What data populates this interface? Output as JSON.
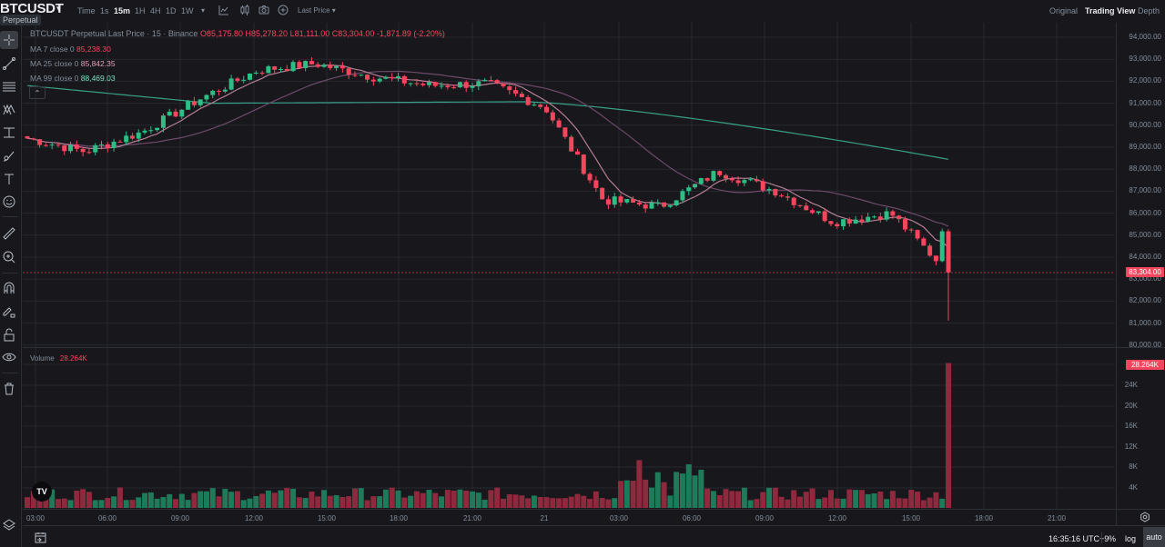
{
  "header": {
    "symbol": "BTCUSDT",
    "symbol_caret": "▾",
    "badge": "Perpetual",
    "time_label": "Time",
    "intervals": [
      "1s",
      "15m",
      "1H",
      "4H",
      "1D",
      "1W"
    ],
    "active_interval": "15m",
    "more_caret": "▾",
    "price_type": "Last Price ▾",
    "views": [
      "Original",
      "Trading View",
      "Depth"
    ],
    "active_view": "Trading View"
  },
  "legend": {
    "title": "BTCUSDT Perpetual Last Price · 15 · Binance",
    "open": "O85,175.80",
    "high": "H85,278.20",
    "low": "L81,111.00",
    "close": "C83,304.00",
    "change": "-1,871.89 (-2.20%)",
    "ma7_label": "MA 7 close 0",
    "ma7_value": "85,238.30",
    "ma25_label": "MA 25 close 0",
    "ma25_value": "85,842.35",
    "ma99_label": "MA 99 close 0",
    "ma99_value": "88,469.03",
    "collapse": "⌃"
  },
  "volume_legend": {
    "label": "Volume",
    "value": "28.264K"
  },
  "price_axis": [
    "94,000.00",
    "93,000.00",
    "92,000.00",
    "91,000.00",
    "90,000.00",
    "89,000.00",
    "88,000.00",
    "87,000.00",
    "86,000.00",
    "85,000.00",
    "84,000.00",
    "83,000.00",
    "82,000.00",
    "81,000.00",
    "80,000.00"
  ],
  "current_price_tag": "83,304.00",
  "volume_axis": [
    "24K",
    "20K",
    "16K",
    "12K",
    "8K",
    "4K"
  ],
  "current_volume_tag": "28.264K",
  "time_axis": [
    "03:00",
    "06:00",
    "09:00",
    "12:00",
    "15:00",
    "18:00",
    "21:00",
    "21",
    "03:00",
    "06:00",
    "09:00",
    "12:00",
    "15:00",
    "18:00",
    "21:00"
  ],
  "footer": {
    "clock": "16:35:16 UTC+9",
    "percent": "%",
    "log": "log",
    "auto": "auto"
  },
  "colors": {
    "up": "#2ebd85",
    "down": "#f6465d",
    "vol_up": "#1f7a5a",
    "vol_down": "#8f2a3e",
    "ma7": "#b57f95",
    "ma25": "#6e4a6a",
    "ma99": "#3a9f86",
    "grid": "#26282e",
    "background": "#17171c"
  },
  "chart_data": {
    "type": "candlestick",
    "title": "BTCUSDT Perpetual Last Price · 15 · Binance",
    "ylim": [
      80000,
      94000
    ],
    "x_ticks": [
      "03:00",
      "06:00",
      "09:00",
      "12:00",
      "15:00",
      "18:00",
      "21:00",
      "21",
      "03:00",
      "06:00",
      "09:00",
      "12:00",
      "15:00",
      "18:00",
      "21:00"
    ],
    "last_candle": {
      "open": 85175.8,
      "high": 85278.2,
      "low": 81111.0,
      "close": 83304.0,
      "change": -1871.89,
      "change_pct": -2.2
    },
    "ma": {
      "MA7": 85238.3,
      "MA25": 85842.35,
      "MA99": 88469.03
    },
    "price_path_approx": [
      {
        "t": "02:45",
        "close": 89400
      },
      {
        "t": "05:00",
        "close": 88800
      },
      {
        "t": "07:00",
        "close": 89700
      },
      {
        "t": "09:00",
        "close": 91200
      },
      {
        "t": "11:00",
        "close": 92500
      },
      {
        "t": "14:30",
        "close": 92800
      },
      {
        "t": "16:00",
        "close": 92200
      },
      {
        "t": "19:00",
        "close": 91800
      },
      {
        "t": "22:00",
        "close": 91900
      },
      {
        "t": "00:00",
        "close": 90800
      },
      {
        "t": "02:00",
        "close": 86600
      },
      {
        "t": "05:00",
        "close": 86300
      },
      {
        "t": "07:30",
        "close": 87900
      },
      {
        "t": "10:00",
        "close": 87000
      },
      {
        "t": "12:00",
        "close": 85600
      },
      {
        "t": "15:00",
        "close": 86000
      },
      {
        "t": "16:30",
        "close": 83304
      }
    ],
    "volume": {
      "last": "28.264K",
      "ylim": [
        0,
        28000
      ],
      "ticks": [
        "4K",
        "8K",
        "12K",
        "16K",
        "20K",
        "24K"
      ]
    }
  }
}
